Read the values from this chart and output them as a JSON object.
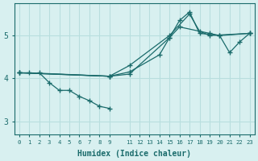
{
  "xlabel": "Humidex (Indice chaleur)",
  "bg_color": "#d8f0f0",
  "grid_color": "#b8dede",
  "line_color": "#1a6b6b",
  "xlim": [
    -0.5,
    23.5
  ],
  "ylim": [
    2.7,
    5.75
  ],
  "xticks": [
    0,
    1,
    2,
    3,
    4,
    5,
    6,
    7,
    8,
    9,
    11,
    12,
    13,
    14,
    15,
    16,
    17,
    18,
    19,
    20,
    21,
    22,
    23
  ],
  "xtick_labels": [
    "0",
    "1",
    "2",
    "3",
    "4",
    "5",
    "6",
    "7",
    "8",
    "9",
    "11",
    "12",
    "13",
    "14",
    "15",
    "16",
    "17",
    "18",
    "19",
    "20",
    "21",
    "22",
    "23"
  ],
  "yticks": [
    3,
    4,
    5
  ],
  "lines": [
    {
      "x": [
        0,
        1,
        9,
        11,
        14,
        15,
        16,
        19,
        20,
        23
      ],
      "y": [
        4.13,
        4.13,
        4.05,
        4.15,
        4.55,
        4.95,
        5.2,
        5.05,
        5.0,
        5.05
      ]
    },
    {
      "x": [
        0,
        9,
        11,
        15,
        17,
        18,
        19,
        23
      ],
      "y": [
        4.13,
        4.05,
        4.3,
        5.0,
        5.5,
        5.1,
        5.0,
        5.05
      ]
    },
    {
      "x": [
        0,
        9,
        11,
        15,
        16,
        17,
        18,
        20,
        21,
        22,
        23
      ],
      "y": [
        4.13,
        4.05,
        4.1,
        4.95,
        5.35,
        5.55,
        5.05,
        5.0,
        4.6,
        4.85,
        5.05
      ]
    },
    {
      "x": [
        2,
        3,
        4,
        5,
        6,
        7,
        8,
        9
      ],
      "y": [
        4.13,
        3.9,
        3.72,
        3.72,
        3.58,
        3.48,
        3.35,
        3.3
      ]
    }
  ]
}
